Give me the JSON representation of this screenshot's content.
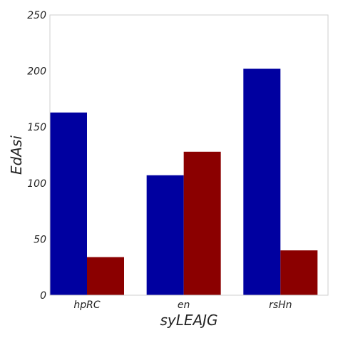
{
  "chart_data": {
    "type": "bar",
    "title": "",
    "xlabel": "syLEAJG",
    "ylabel": "EdAsi",
    "categories": [
      "hpRC",
      "en",
      "rsHn"
    ],
    "series": [
      {
        "color": "#0000a0",
        "values": [
          163,
          107,
          202
        ]
      },
      {
        "color": "#8b0000",
        "values": [
          34,
          128,
          40
        ]
      }
    ],
    "ylim": [
      0,
      250
    ],
    "yticks": [
      0,
      50,
      100,
      150,
      200,
      250
    ],
    "grid": false,
    "legend": "none"
  }
}
